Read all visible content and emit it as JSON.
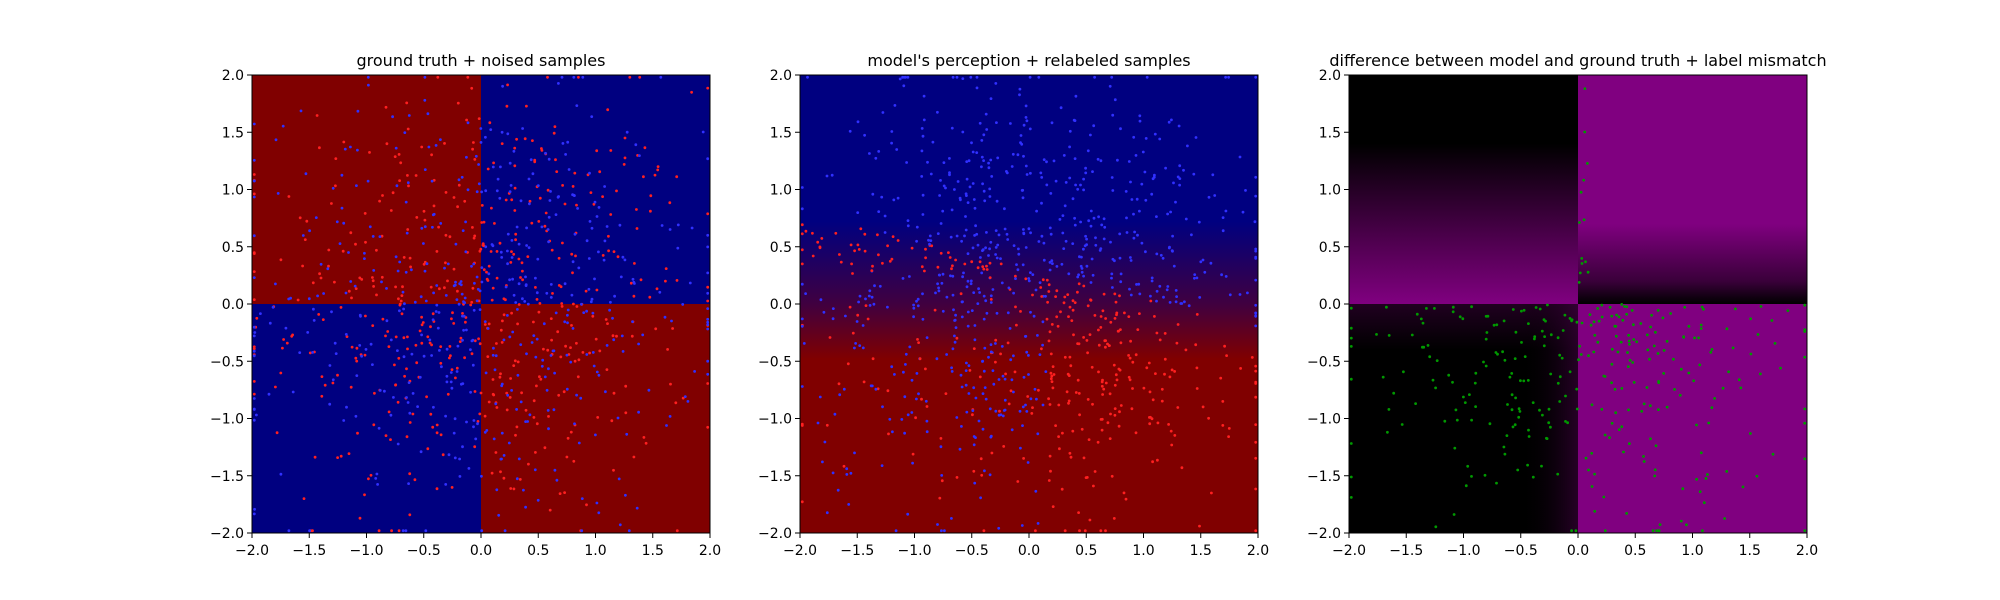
{
  "chart_data": [
    {
      "type": "scatter",
      "title": "ground truth + noised samples",
      "xlim": [
        -2.0,
        2.0
      ],
      "ylim": [
        -2.0,
        2.0
      ],
      "x_ticks": [
        "−2.0",
        "−1.5",
        "−1.0",
        "−0.5",
        "0.0",
        "0.5",
        "1.0",
        "1.5",
        "2.0"
      ],
      "y_ticks": [
        "−2.0",
        "−1.5",
        "−1.0",
        "−0.5",
        "0.0",
        "0.5",
        "1.0",
        "1.5",
        "2.0"
      ],
      "background": "xor quadrants: dark red where x<0,y>0 and x>0,y<0; navy where x>0,y>0 and x<0,y<0",
      "background_colors": {
        "class_a": "#800000",
        "class_b": "#000080"
      },
      "series": [
        {
          "color": "#ff2020",
          "count": 500,
          "region": "uniform in [-2,2]x[-2,2], denser near center"
        },
        {
          "color": "#3030ff",
          "count": 500,
          "region": "uniform in [-2,2]x[-2,2], denser near center"
        }
      ]
    },
    {
      "type": "scatter",
      "title": "model's perception + relabeled samples",
      "xlim": [
        -2.0,
        2.0
      ],
      "ylim": [
        -2.0,
        2.0
      ],
      "x_ticks": [
        "−2.0",
        "−1.5",
        "−1.0",
        "−0.5",
        "0.0",
        "0.5",
        "1.0",
        "1.5",
        "2.0"
      ],
      "y_ticks": [
        "−2.0",
        "−1.5",
        "−1.0",
        "−0.5",
        "0.0",
        "0.5",
        "1.0",
        "1.5",
        "2.0"
      ],
      "background": "model output: navy in upper region, dark red in lower region, smooth diagonal transition near y≈0.2",
      "background_colors": {
        "class_a": "#800000",
        "class_b": "#000080"
      },
      "series": [
        {
          "color": "#3030ff",
          "label_rule": "model predicts blue",
          "count": 550
        },
        {
          "color": "#ff2020",
          "label_rule": "model predicts red",
          "count": 450
        }
      ]
    },
    {
      "type": "scatter",
      "title": "difference between model and ground truth + label mismatch",
      "xlim": [
        -2.0,
        2.0
      ],
      "ylim": [
        -2.0,
        2.0
      ],
      "x_ticks": [
        "−2.0",
        "−1.5",
        "−1.0",
        "−0.5",
        "0.0",
        "0.5",
        "1.0",
        "1.5",
        "2.0"
      ],
      "y_ticks": [
        "−2.0",
        "−1.5",
        "−1.0",
        "−0.5",
        "0.0",
        "0.5",
        "1.0",
        "1.5",
        "2.0"
      ],
      "background": "absolute difference: black where model agrees, purple where it disagrees; upper-left black fading to purple toward y=0, upper-right purple, lower-left black, lower-right purple",
      "background_colors": {
        "agree": "#000000",
        "disagree": "#800080"
      },
      "series": [
        {
          "color": "#009900",
          "label_rule": "label mismatch samples",
          "count": 320,
          "region": "mostly y<0"
        }
      ]
    }
  ]
}
